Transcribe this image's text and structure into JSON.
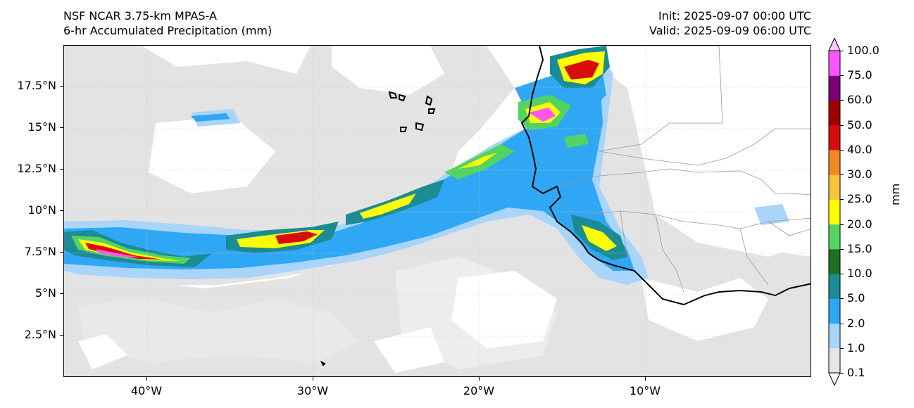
{
  "header": {
    "model": "NSF NCAR 3.75-km MPAS-A",
    "field": "6-hr Accumulated Precipitation (mm)",
    "init": "Init: 2025-09-07 00:00 UTC",
    "valid": "Valid: 2025-09-09 06:00 UTC"
  },
  "map": {
    "lon_range": [
      -45,
      0
    ],
    "lat_range": [
      0,
      20
    ],
    "lat_ticks": [
      {
        "value": 17.5,
        "label": "17.5°N"
      },
      {
        "value": 15,
        "label": "15°N"
      },
      {
        "value": 12.5,
        "label": "12.5°N"
      },
      {
        "value": 10,
        "label": "10°N"
      },
      {
        "value": 7.5,
        "label": "7.5°N"
      },
      {
        "value": 5,
        "label": "5°N"
      },
      {
        "value": 2.5,
        "label": "2.5°N"
      }
    ],
    "lon_ticks": [
      {
        "value": -40,
        "label": "40°W"
      },
      {
        "value": -30,
        "label": "30°W"
      },
      {
        "value": -20,
        "label": "20°W"
      },
      {
        "value": -10,
        "label": "10°W"
      }
    ],
    "gridlines": true,
    "colors": {
      "background": "#ffffff",
      "light_rain": "#e3e3e3",
      "coast": "#000000",
      "borders": "#9a9a9a"
    }
  },
  "colorbar": {
    "unit": "mm",
    "levels": [
      {
        "label": "0.1",
        "color": "#e6e6e6"
      },
      {
        "label": "1.0",
        "color": "#a9d4fb"
      },
      {
        "label": "2.0",
        "color": "#2fa7f5"
      },
      {
        "label": "5.0",
        "color": "#1b8b94"
      },
      {
        "label": "10.0",
        "color": "#1e6f1f"
      },
      {
        "label": "15.0",
        "color": "#53d361"
      },
      {
        "label": "20.0",
        "color": "#ffff00"
      },
      {
        "label": "25.0",
        "color": "#f7c43c"
      },
      {
        "label": "30.0",
        "color": "#f08a24"
      },
      {
        "label": "40.0",
        "color": "#d70c0c"
      },
      {
        "label": "50.0",
        "color": "#9e0000"
      },
      {
        "label": "60.0",
        "color": "#7a0078"
      },
      {
        "label": "75.0",
        "color": "#ff55ff"
      },
      {
        "label": "100.0",
        "color": "#ffccff"
      }
    ]
  }
}
